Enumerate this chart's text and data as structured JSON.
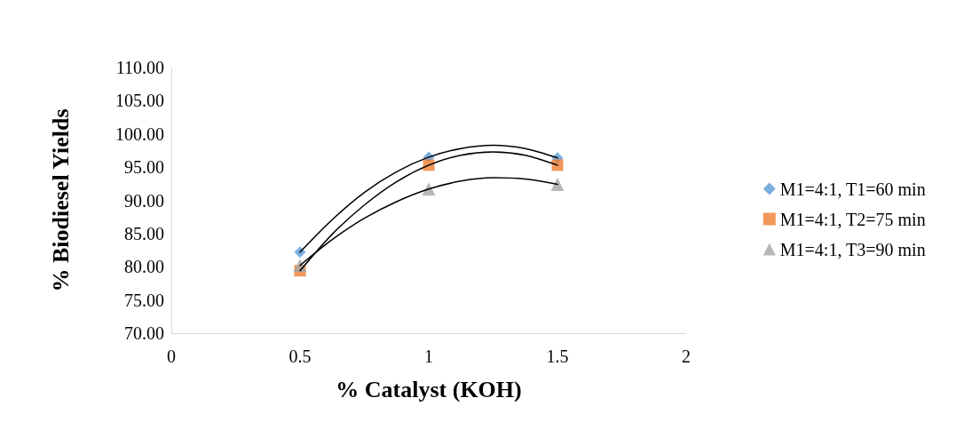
{
  "chart_data": {
    "type": "scatter",
    "xlabel": "% Catalyst (KOH)",
    "ylabel": "% Biodiesel Yields",
    "xlim": [
      0,
      2
    ],
    "xticks": [
      0,
      0.5,
      1,
      1.5,
      2
    ],
    "ylim": [
      70,
      110
    ],
    "yticks": [
      {
        "value": 70,
        "label": "70.00"
      },
      {
        "value": 75,
        "label": "75.00"
      },
      {
        "value": 80,
        "label": "80.00"
      },
      {
        "value": 85,
        "label": "85.00"
      },
      {
        "value": 90,
        "label": "90.00"
      },
      {
        "value": 95,
        "label": "95.00"
      },
      {
        "value": 100,
        "label": "100.00"
      },
      {
        "value": 105,
        "label": "105.00"
      },
      {
        "value": 110,
        "label": "110.00"
      }
    ],
    "grid": false,
    "legend": "right",
    "series": [
      {
        "name": "M1=4:1, T1=60 min",
        "color": "#5b9bd5",
        "marker": "diamond",
        "x": [
          0.5,
          1,
          1.5
        ],
        "values": [
          82.2,
          96.5,
          96.4
        ]
      },
      {
        "name": "M1=4:1, T2=75 min",
        "color": "#ed7d31",
        "marker": "square",
        "x": [
          0.5,
          1,
          1.5
        ],
        "values": [
          79.4,
          95.3,
          95.3
        ]
      },
      {
        "name": "M1=4:1, T3=90 min",
        "color": "#a5a5a5",
        "marker": "triangle",
        "x": [
          0.5,
          1,
          1.5
        ],
        "values": [
          80.2,
          91.7,
          92.4
        ]
      },
      {
        "type": "line",
        "color": "#000000",
        "marker": "none",
        "x": [
          0.5,
          0.625,
          0.75,
          0.875,
          1,
          1.125,
          1.25,
          1.375,
          1.5
        ],
        "values": [
          82.2,
          87.1,
          91.2,
          94.3,
          96.5,
          97.8,
          98.3,
          97.8,
          96.4
        ]
      },
      {
        "type": "line",
        "color": "#000000",
        "marker": "none",
        "x": [
          0.5,
          0.625,
          0.75,
          0.875,
          1,
          1.125,
          1.25,
          1.375,
          1.5
        ],
        "values": [
          79.4,
          84.9,
          89.3,
          92.8,
          95.3,
          96.8,
          97.3,
          96.8,
          95.3
        ]
      },
      {
        "type": "line",
        "color": "#000000",
        "marker": "none",
        "x": [
          0.5,
          0.625,
          0.75,
          0.875,
          1,
          1.125,
          1.25,
          1.375,
          1.5
        ],
        "values": [
          80.2,
          84.1,
          87.3,
          89.8,
          91.7,
          92.9,
          93.4,
          93.2,
          92.4
        ]
      }
    ]
  }
}
